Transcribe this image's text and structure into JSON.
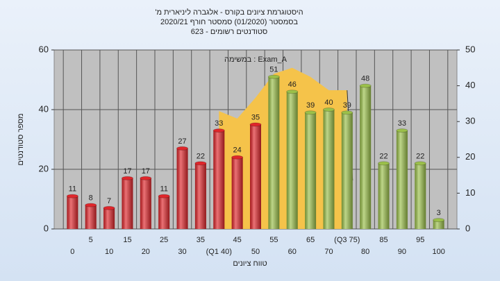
{
  "chart_data": {
    "type": "bar",
    "title_lines": [
      "'היסטוגרמת ציונים בקורס - אלגברה ליניארית מ",
      "בסמסטר  (01/2020)  סמסטר חורף 2020/21",
      "סטודנטים רשומים - 623"
    ],
    "annotation": "במשימה : Exam_A",
    "x_label": "טווח ציונים",
    "y_label": "מספר סטודנטים",
    "categories": [
      "0",
      "5",
      "10",
      "15",
      "20",
      "25",
      "30",
      "35",
      "(Q1 40)",
      "45",
      "50",
      "55",
      "60",
      "65",
      "70",
      "(Q3 75)",
      "80",
      "85",
      "90",
      "95",
      "100"
    ],
    "series": [
      {
        "name": "ציונים",
        "colors": [
          "#e0262b",
          "#e0262b",
          "#e0262b",
          "#e0262b",
          "#e0262b",
          "#e0262b",
          "#e0262b",
          "#e0262b",
          "#e0262b",
          "#e0262b",
          "#e0262b",
          "#9bc04a",
          "#9bc04a",
          "#9bc04a",
          "#9bc04a",
          "#9bc04a",
          "#9bc04a",
          "#9bc04a",
          "#9bc04a",
          "#9bc04a",
          "#9bc04a"
        ],
        "values": [
          11,
          8,
          7,
          17,
          17,
          11,
          27,
          22,
          33,
          24,
          35,
          51,
          46,
          39,
          40,
          39,
          48,
          22,
          33,
          22,
          3
        ]
      },
      {
        "type": "area",
        "color": "#f5c34a",
        "values": [
          null,
          null,
          null,
          null,
          null,
          null,
          null,
          null,
          39.5,
          37,
          44,
          52,
          54,
          51,
          46.5,
          46.5,
          null,
          null,
          null,
          null,
          null
        ]
      }
    ],
    "ylim": [
      0,
      60
    ],
    "yticks": [
      0,
      20,
      40,
      60
    ],
    "y2lim": [
      0,
      50
    ],
    "y2ticks": [
      0,
      10,
      20,
      30,
      40,
      50
    ],
    "grid": true
  }
}
